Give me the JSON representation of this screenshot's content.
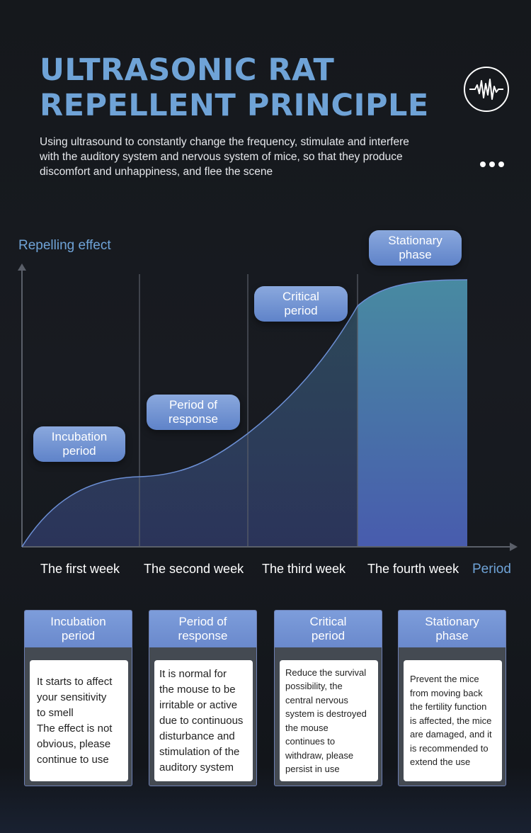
{
  "header": {
    "title": "ULTRASONIC RAT\nREPELLENT PRINCIPLE",
    "subtitle": "Using ultrasound to constantly change the frequency, stimulate and interfere with the auditory system and nervous system of mice, so that they produce discomfort and unhappiness, and flee the scene",
    "icon": "sound-wave-icon",
    "more_icon": "more-dots-icon"
  },
  "chart_data": {
    "type": "area",
    "ylabel": "Repelling effect",
    "xlabel": "Period",
    "categories": [
      "The first week",
      "The second week",
      "The third week",
      "The fourth week"
    ],
    "phases": [
      "Incubation\nperiod",
      "Period of\nresponse",
      "Critical\nperiod",
      "Stationary\nphase"
    ],
    "curve_shape": "s-curve rising to a plateau",
    "colors": {
      "axis": "#5a5f69",
      "curve": "#6c8fd4",
      "fill_top": "#4a90a8",
      "fill_bottom": "#4b5fb5"
    }
  },
  "cards": [
    {
      "title": "Incubation\nperiod",
      "text": "It starts to affect\nyour sensitivity\nto smell\nThe effect is not\nobvious, please\ncontinue to use"
    },
    {
      "title": "Period of\nresponse",
      "text": "It is normal for\nthe mouse to be\nirritable or active\ndue to continuous\ndisturbance and\nstimulation of the\nauditory system"
    },
    {
      "title": "Critical\nperiod",
      "text": "Reduce the survival\npossibility, the\ncentral nervous\nsystem is destroyed\n the mouse\ncontinues to\nwithdraw, please\npersist in use"
    },
    {
      "title": "Stationary\nphase",
      "text": "Prevent the mice\nfrom moving back\nthe fertility function\nis affected, the mice\nare damaged, and it\nis recommended to\nextend the use"
    }
  ]
}
